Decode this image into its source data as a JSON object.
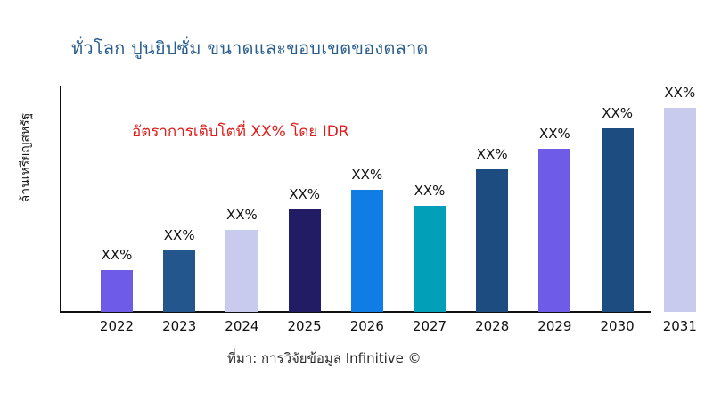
{
  "header": {
    "title": "ทั่วโลก ปูนยิปซั่ม ขนาดและขอบเขตของตลาด",
    "title_color": "#2a5e8e"
  },
  "footer": {
    "source": "ที่มา: การวิจัยข้อมูล Infinitive ©"
  },
  "chart_data": {
    "type": "bar",
    "title": "ทั่วโลก ปูนยิปซั่ม ขนาดและขอบเขตของตลาด",
    "xlabel": "",
    "ylabel": "ล้านเหรียญสหรัฐ",
    "annotation": "อัตราการเติบโตที่ XX% โดย IDR",
    "annotation_color": "#e01b1b",
    "categories": [
      "2022",
      "2023",
      "2024",
      "2025",
      "2026",
      "2027",
      "2028",
      "2029",
      "2030",
      "2031"
    ],
    "bar_labels": [
      "XX%",
      "XX%",
      "XX%",
      "XX%",
      "XX%",
      "XX%",
      "XX%",
      "XX%",
      "XX%",
      "XX%"
    ],
    "values_pct_of_final_year": [
      20.5,
      30,
      40,
      50,
      60,
      52,
      70,
      80,
      90,
      100
    ],
    "colors": [
      "#6e5be8",
      "#23568c",
      "#c9cbee",
      "#211c63",
      "#0f7de4",
      "#02a0b8",
      "#1d4d80",
      "#6e5be8",
      "#1d4d80",
      "#c9cbee"
    ],
    "grid": false,
    "legend": "none",
    "axis_note": "y-axis values not shown; bar data labels are XX% placeholders"
  }
}
